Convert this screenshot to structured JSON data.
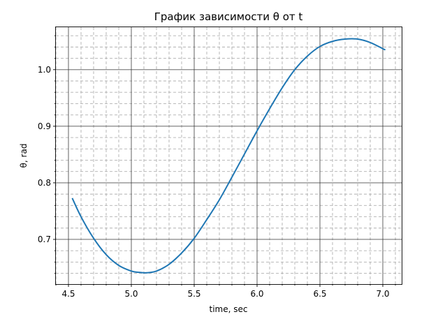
{
  "chart_data": {
    "type": "line",
    "title": "График зависимости θ от t",
    "xlabel": "time, sec",
    "ylabel": "θ, rad",
    "xlim": [
      4.4,
      7.15
    ],
    "ylim": [
      0.621,
      1.075
    ],
    "xticks": [
      4.5,
      5.0,
      5.5,
      6.0,
      6.5,
      7.0
    ],
    "xtick_labels": [
      "4.5",
      "5.0",
      "5.5",
      "6.0",
      "6.5",
      "7.0"
    ],
    "yticks": [
      0.7,
      0.8,
      0.9,
      1.0
    ],
    "ytick_labels": [
      "0.7",
      "0.8",
      "0.9",
      "1.0"
    ],
    "x_minor_step": 0.1,
    "y_minor_step": 0.02,
    "grid": "major solid dark, minor dashed light",
    "line_color": "#1f77b4",
    "series": [
      {
        "x": [
          4.53,
          4.6,
          4.7,
          4.8,
          4.9,
          5.0,
          5.05,
          5.12,
          5.2,
          5.3,
          5.4,
          5.5,
          5.6,
          5.7,
          5.8,
          5.9,
          6.0,
          6.1,
          6.2,
          6.3,
          6.4,
          6.5,
          6.6,
          6.7,
          6.8,
          6.9,
          7.0,
          7.02
        ],
        "y": [
          0.773,
          0.74,
          0.702,
          0.673,
          0.654,
          0.644,
          0.642,
          0.641,
          0.644,
          0.656,
          0.676,
          0.702,
          0.735,
          0.77,
          0.81,
          0.851,
          0.892,
          0.931,
          0.968,
          1.0,
          1.024,
          1.041,
          1.05,
          1.054,
          1.054,
          1.048,
          1.037,
          1.035
        ]
      }
    ]
  }
}
